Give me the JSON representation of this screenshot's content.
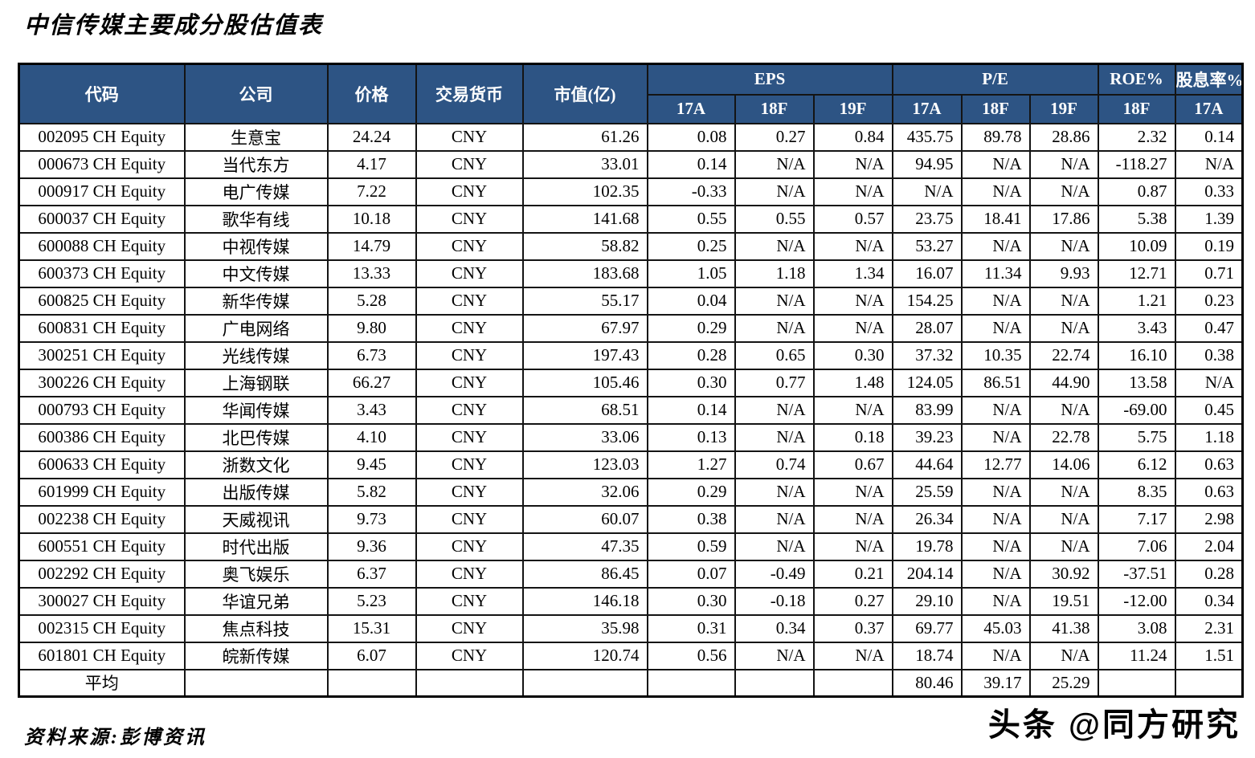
{
  "title": "中信传媒主要成分股估值表",
  "source": "资料来源:彭博资讯",
  "watermark": "头条 @同方研究",
  "colors": {
    "header_bg": "#2d5484",
    "header_text": "#ffffff",
    "border": "#141414",
    "body_text": "#000000"
  },
  "table": {
    "headers": {
      "code": "代码",
      "company": "公司",
      "price": "价格",
      "currency": "交易货币",
      "market_cap": "市值(亿)",
      "eps_group": "EPS",
      "pe_group": "P/E",
      "roe_group": "ROE%",
      "dividend_group": "股息率%",
      "sub": [
        "17A",
        "18F",
        "19F",
        "17A",
        "18F",
        "19F",
        "18F",
        "17A"
      ]
    },
    "rows": [
      [
        "002095 CH Equity",
        "生意宝",
        "24.24",
        "CNY",
        "61.26",
        "0.08",
        "0.27",
        "0.84",
        "435.75",
        "89.78",
        "28.86",
        "2.32",
        "0.14"
      ],
      [
        "000673 CH Equity",
        "当代东方",
        "4.17",
        "CNY",
        "33.01",
        "0.14",
        "N/A",
        "N/A",
        "94.95",
        "N/A",
        "N/A",
        "-118.27",
        "N/A"
      ],
      [
        "000917 CH Equity",
        "电广传媒",
        "7.22",
        "CNY",
        "102.35",
        "-0.33",
        "N/A",
        "N/A",
        "N/A",
        "N/A",
        "N/A",
        "0.87",
        "0.33"
      ],
      [
        "600037 CH Equity",
        "歌华有线",
        "10.18",
        "CNY",
        "141.68",
        "0.55",
        "0.55",
        "0.57",
        "23.75",
        "18.41",
        "17.86",
        "5.38",
        "1.39"
      ],
      [
        "600088 CH Equity",
        "中视传媒",
        "14.79",
        "CNY",
        "58.82",
        "0.25",
        "N/A",
        "N/A",
        "53.27",
        "N/A",
        "N/A",
        "10.09",
        "0.19"
      ],
      [
        "600373 CH Equity",
        "中文传媒",
        "13.33",
        "CNY",
        "183.68",
        "1.05",
        "1.18",
        "1.34",
        "16.07",
        "11.34",
        "9.93",
        "12.71",
        "0.71"
      ],
      [
        "600825 CH Equity",
        "新华传媒",
        "5.28",
        "CNY",
        "55.17",
        "0.04",
        "N/A",
        "N/A",
        "154.25",
        "N/A",
        "N/A",
        "1.21",
        "0.23"
      ],
      [
        "600831 CH Equity",
        "广电网络",
        "9.80",
        "CNY",
        "67.97",
        "0.29",
        "N/A",
        "N/A",
        "28.07",
        "N/A",
        "N/A",
        "3.43",
        "0.47"
      ],
      [
        "300251 CH Equity",
        "光线传媒",
        "6.73",
        "CNY",
        "197.43",
        "0.28",
        "0.65",
        "0.30",
        "37.32",
        "10.35",
        "22.74",
        "16.10",
        "0.38"
      ],
      [
        "300226 CH Equity",
        "上海钢联",
        "66.27",
        "CNY",
        "105.46",
        "0.30",
        "0.77",
        "1.48",
        "124.05",
        "86.51",
        "44.90",
        "13.58",
        "N/A"
      ],
      [
        "000793 CH Equity",
        "华闻传媒",
        "3.43",
        "CNY",
        "68.51",
        "0.14",
        "N/A",
        "N/A",
        "83.99",
        "N/A",
        "N/A",
        "-69.00",
        "0.45"
      ],
      [
        "600386 CH Equity",
        "北巴传媒",
        "4.10",
        "CNY",
        "33.06",
        "0.13",
        "N/A",
        "0.18",
        "39.23",
        "N/A",
        "22.78",
        "5.75",
        "1.18"
      ],
      [
        "600633 CH Equity",
        "浙数文化",
        "9.45",
        "CNY",
        "123.03",
        "1.27",
        "0.74",
        "0.67",
        "44.64",
        "12.77",
        "14.06",
        "6.12",
        "0.63"
      ],
      [
        "601999 CH Equity",
        "出版传媒",
        "5.82",
        "CNY",
        "32.06",
        "0.29",
        "N/A",
        "N/A",
        "25.59",
        "N/A",
        "N/A",
        "8.35",
        "0.63"
      ],
      [
        "002238 CH Equity",
        "天威视讯",
        "9.73",
        "CNY",
        "60.07",
        "0.38",
        "N/A",
        "N/A",
        "26.34",
        "N/A",
        "N/A",
        "7.17",
        "2.98"
      ],
      [
        "600551 CH Equity",
        "时代出版",
        "9.36",
        "CNY",
        "47.35",
        "0.59",
        "N/A",
        "N/A",
        "19.78",
        "N/A",
        "N/A",
        "7.06",
        "2.04"
      ],
      [
        "002292 CH Equity",
        "奥飞娱乐",
        "6.37",
        "CNY",
        "86.45",
        "0.07",
        "-0.49",
        "0.21",
        "204.14",
        "N/A",
        "30.92",
        "-37.51",
        "0.28"
      ],
      [
        "300027 CH Equity",
        "华谊兄弟",
        "5.23",
        "CNY",
        "146.18",
        "0.30",
        "-0.18",
        "0.27",
        "29.10",
        "N/A",
        "19.51",
        "-12.00",
        "0.34"
      ],
      [
        "002315 CH Equity",
        "焦点科技",
        "15.31",
        "CNY",
        "35.98",
        "0.31",
        "0.34",
        "0.37",
        "69.77",
        "45.03",
        "41.38",
        "3.08",
        "2.31"
      ],
      [
        "601801 CH Equity",
        "皖新传媒",
        "6.07",
        "CNY",
        "120.74",
        "0.56",
        "N/A",
        "N/A",
        "18.74",
        "N/A",
        "N/A",
        "11.24",
        "1.51"
      ]
    ],
    "summary_row": [
      "平均",
      "",
      "",
      "",
      "",
      "",
      "",
      "",
      "80.46",
      "39.17",
      "25.29",
      "",
      ""
    ]
  }
}
